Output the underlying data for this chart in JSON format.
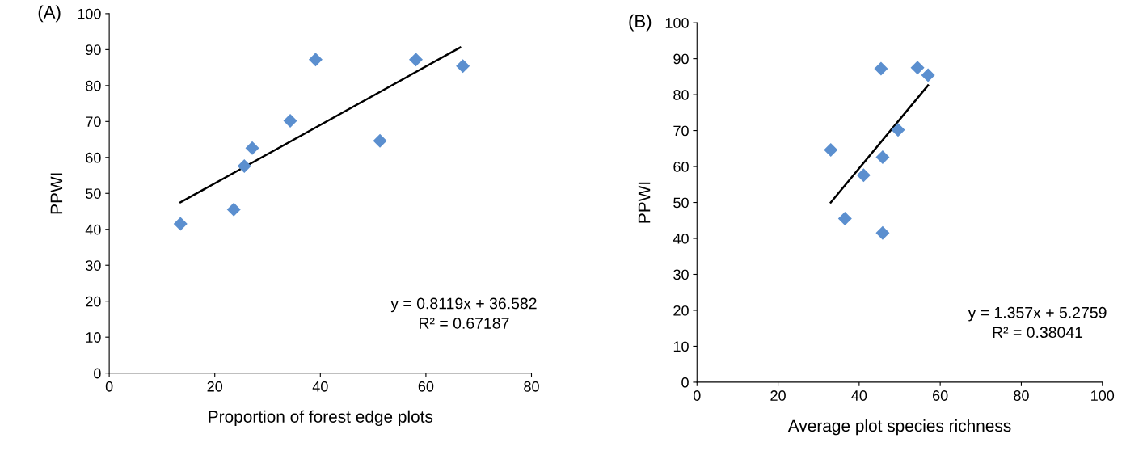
{
  "chart_data": [
    {
      "type": "scatter",
      "xlabel": "Proportion of forest edge plots",
      "ylabel": "PPWI",
      "xlim": [
        0,
        80
      ],
      "xticks": [
        0,
        20,
        40,
        60,
        80
      ],
      "ylim": [
        0,
        100
      ],
      "yticks": [
        0,
        10,
        20,
        30,
        40,
        50,
        60,
        70,
        80,
        90,
        100
      ],
      "grid": false,
      "legend": false,
      "annotations": [
        "(A)",
        "y = 0.8119x + 36.582",
        "R² = 0.67187"
      ],
      "series": [
        {
          "marker": "diamond",
          "color": "#5b8fcf",
          "x": [
            13.5,
            23.6,
            25.6,
            27.1,
            34.3,
            39.1,
            51.3,
            58.1,
            67.0
          ],
          "values": [
            41.5,
            45.5,
            57.6,
            62.6,
            70.2,
            87.2,
            64.6,
            87.2,
            85.4
          ]
        },
        {
          "type": "line",
          "marker": "none",
          "color": "#000000",
          "x": [
            13.5,
            66.5
          ],
          "values": [
            47.5,
            90.6
          ]
        }
      ]
    },
    {
      "type": "scatter",
      "xlabel": "Average plot species richness",
      "ylabel": "PPWI",
      "xlim": [
        0,
        100
      ],
      "xticks": [
        0,
        20,
        40,
        60,
        80,
        100
      ],
      "ylim": [
        0,
        100
      ],
      "yticks": [
        0,
        10,
        20,
        30,
        40,
        50,
        60,
        70,
        80,
        90,
        100
      ],
      "grid": false,
      "legend": false,
      "annotations": [
        "(B)",
        "y = 1.357x + 5.2759",
        "R² = 0.38041"
      ],
      "series": [
        {
          "marker": "diamond",
          "color": "#5b8fcf",
          "x": [
            33.0,
            36.5,
            41.1,
            45.4,
            45.8,
            45.8,
            49.6,
            54.4,
            57.0
          ],
          "values": [
            64.6,
            45.5,
            57.6,
            87.2,
            62.6,
            41.5,
            70.2,
            87.5,
            85.4
          ]
        },
        {
          "type": "line",
          "marker": "none",
          "color": "#000000",
          "x": [
            33.0,
            57.0
          ],
          "values": [
            50.0,
            82.6
          ]
        }
      ]
    }
  ]
}
